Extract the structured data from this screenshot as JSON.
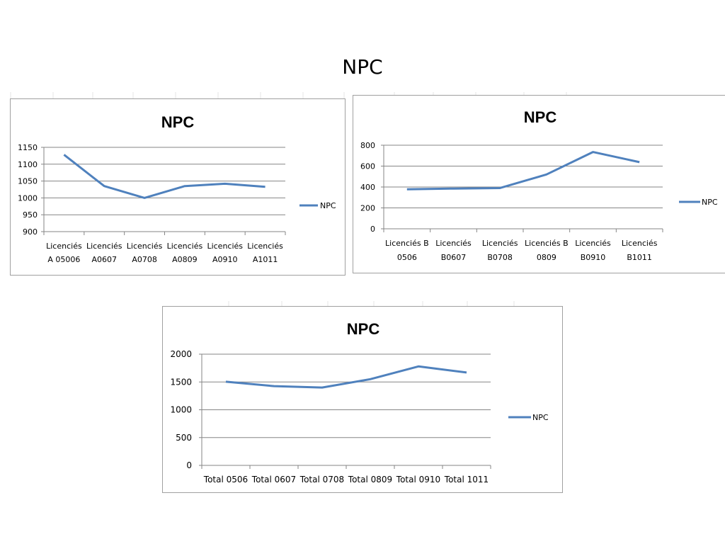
{
  "page": {
    "title": "NPC"
  },
  "colors": {
    "series": "#4F81BD",
    "grid": "#868686",
    "axis": "#868686"
  },
  "chart_data": [
    {
      "type": "line",
      "title": "NPC",
      "categories": [
        [
          "Licenciés",
          "A 05006"
        ],
        [
          "Licenciés",
          "A0607"
        ],
        [
          "Licenciés",
          "A0708"
        ],
        [
          "Licenciés",
          "A0809"
        ],
        [
          "Licenciés",
          "A0910"
        ],
        [
          "Licenciés",
          "A1011"
        ]
      ],
      "series": [
        {
          "name": "NPC",
          "values": [
            1128,
            1035,
            1000,
            1035,
            1042,
            1033
          ]
        }
      ],
      "yticks": [
        900,
        950,
        1000,
        1050,
        1100,
        1150
      ],
      "ylim": [
        900,
        1150
      ],
      "grid": true,
      "legend": "right",
      "xlabel": "",
      "ylabel": ""
    },
    {
      "type": "line",
      "title": "NPC",
      "categories": [
        [
          "Licenciés B",
          "0506"
        ],
        [
          "Licenciés",
          "B0607"
        ],
        [
          "Licenciés",
          "B0708"
        ],
        [
          "Licenciés B",
          "0809"
        ],
        [
          "Licenciés",
          "B0910"
        ],
        [
          "Licenciés",
          "B1011"
        ]
      ],
      "series": [
        {
          "name": "NPC",
          "values": [
            378,
            385,
            390,
            520,
            735,
            638
          ]
        }
      ],
      "yticks": [
        0,
        200,
        400,
        600,
        800
      ],
      "ylim": [
        0,
        800
      ],
      "grid": true,
      "legend": "right",
      "xlabel": "",
      "ylabel": ""
    },
    {
      "type": "line",
      "title": "NPC",
      "categories": [
        [
          "Total 0506"
        ],
        [
          "Total 0607"
        ],
        [
          "Total 0708"
        ],
        [
          "Total 0809"
        ],
        [
          "Total 0910"
        ],
        [
          "Total 1011"
        ]
      ],
      "series": [
        {
          "name": "NPC",
          "values": [
            1505,
            1425,
            1400,
            1550,
            1780,
            1670
          ]
        }
      ],
      "yticks": [
        0,
        500,
        1000,
        1500,
        2000
      ],
      "ylim": [
        0,
        2000
      ],
      "grid": true,
      "legend": "right",
      "xlabel": "",
      "ylabel": ""
    }
  ]
}
